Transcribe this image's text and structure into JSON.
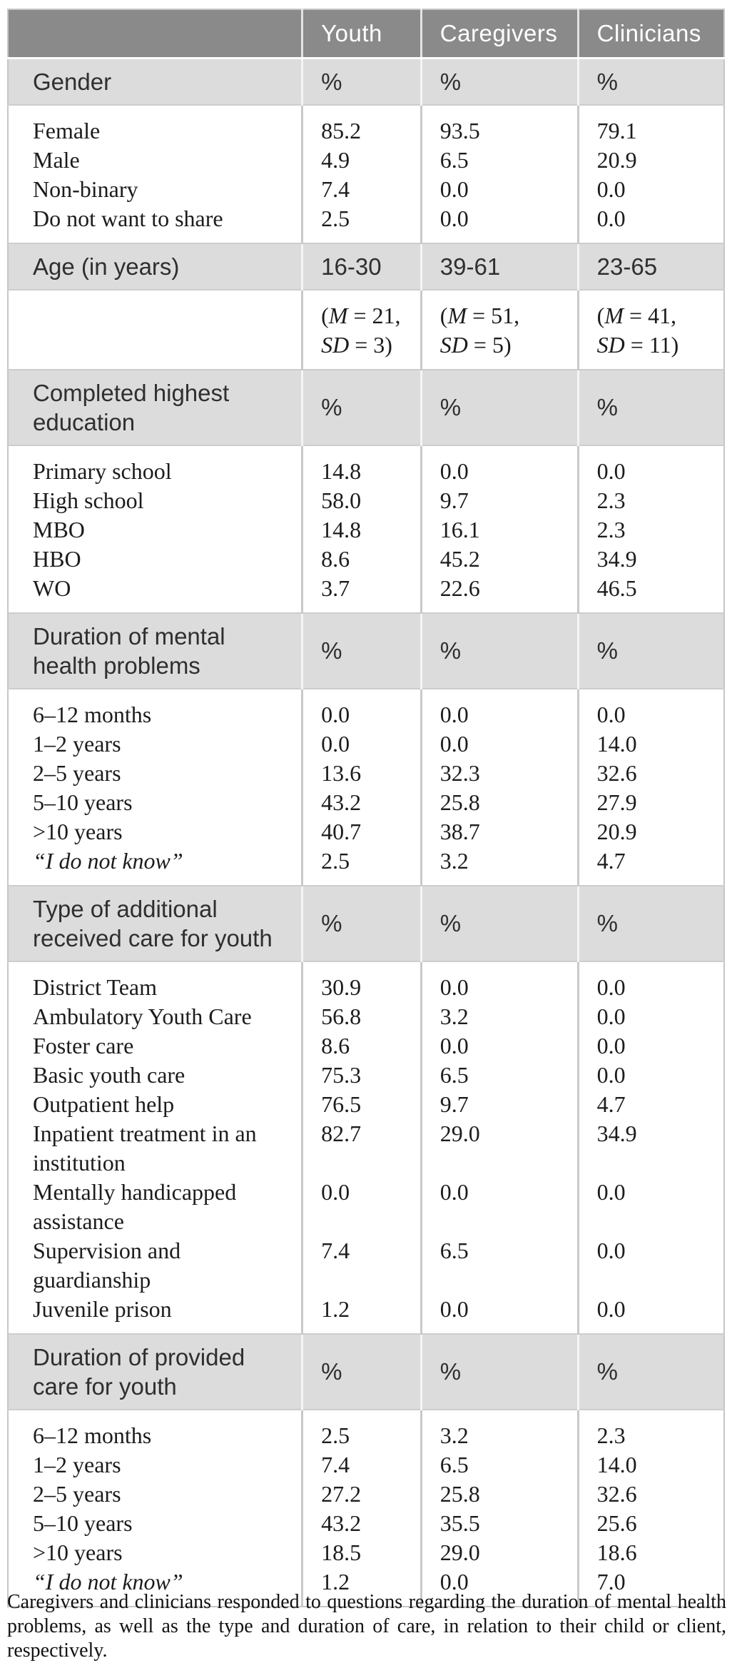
{
  "colors": {
    "header_bg": "#8a8a8a",
    "header_text": "#ffffff",
    "section_bg": "#dcdcdc",
    "body_text": "#1c1c1c",
    "grid_line": "#c9c9c9"
  },
  "table": {
    "columns": [
      "",
      "Youth",
      "Caregivers",
      "Clinicians"
    ],
    "sections": [
      {
        "kind": "gray",
        "label": "Gender",
        "values": [
          "%",
          "%",
          "%"
        ]
      },
      {
        "kind": "white",
        "rows": [
          {
            "label": "Female",
            "values": [
              "85.2",
              "93.5",
              "79.1"
            ]
          },
          {
            "label": "Male",
            "values": [
              "4.9",
              "6.5",
              "20.9"
            ]
          },
          {
            "label": "Non-binary",
            "values": [
              "7.4",
              "0.0",
              "0.0"
            ]
          },
          {
            "label": "Do not want to share",
            "values": [
              "2.5",
              "0.0",
              "0.0"
            ]
          }
        ]
      },
      {
        "kind": "gray",
        "label": "Age (in years)",
        "values": [
          "16-30",
          "39-61",
          "23-65"
        ]
      },
      {
        "kind": "white",
        "rows": [
          {
            "label": "",
            "values": [
              {
                "lines": [
                  "(M = 21,",
                  "SD = 3)"
                ]
              },
              {
                "lines": [
                  "(M = 51,",
                  "SD = 5)"
                ]
              },
              {
                "lines": [
                  "(M = 41,",
                  "SD = 11)"
                ]
              }
            ]
          }
        ]
      },
      {
        "kind": "gray",
        "label": "Completed highest education",
        "values": [
          "%",
          "%",
          "%"
        ]
      },
      {
        "kind": "white",
        "rows": [
          {
            "label": "Primary school",
            "values": [
              "14.8",
              "0.0",
              "0.0"
            ]
          },
          {
            "label": "High school",
            "values": [
              "58.0",
              "9.7",
              "2.3"
            ]
          },
          {
            "label": "MBO",
            "values": [
              "14.8",
              "16.1",
              "2.3"
            ]
          },
          {
            "label": "HBO",
            "values": [
              "8.6",
              "45.2",
              "34.9"
            ]
          },
          {
            "label": "WO",
            "values": [
              "3.7",
              "22.6",
              "46.5"
            ]
          }
        ]
      },
      {
        "kind": "gray",
        "label": "Duration of mental health problems",
        "values": [
          "%",
          "%",
          "%"
        ]
      },
      {
        "kind": "white",
        "rows": [
          {
            "label": "6–12 months",
            "values": [
              "0.0",
              "0.0",
              "0.0"
            ]
          },
          {
            "label": "1–2 years",
            "values": [
              "0.0",
              "0.0",
              "14.0"
            ]
          },
          {
            "label": "2–5 years",
            "values": [
              "13.6",
              "32.3",
              "32.6"
            ]
          },
          {
            "label": "5–10 years",
            "values": [
              "43.2",
              "25.8",
              "27.9"
            ]
          },
          {
            "label": ">10 years",
            "values": [
              "40.7",
              "38.7",
              "20.9"
            ]
          },
          {
            "label": "“I do not know”",
            "italic": true,
            "values": [
              "2.5",
              "3.2",
              "4.7"
            ]
          }
        ]
      },
      {
        "kind": "gray",
        "label": "Type of additional received care for youth",
        "values": [
          "%",
          "%",
          "%"
        ]
      },
      {
        "kind": "white",
        "rows": [
          {
            "label": "District Team",
            "values": [
              "30.9",
              "0.0",
              "0.0"
            ]
          },
          {
            "label": "Ambulatory Youth Care",
            "values": [
              "56.8",
              "3.2",
              "0.0"
            ]
          },
          {
            "label": "Foster care",
            "values": [
              "8.6",
              "0.0",
              "0.0"
            ]
          },
          {
            "label": "Basic youth care",
            "values": [
              "75.3",
              "6.5",
              "0.0"
            ]
          },
          {
            "label": "Outpatient help",
            "values": [
              "76.5",
              "9.7",
              "4.7"
            ]
          },
          {
            "label": "Inpatient treatment in an institution",
            "values": [
              "82.7",
              "29.0",
              "34.9"
            ]
          },
          {
            "label": "Mentally handicapped assistance",
            "values": [
              "0.0",
              "0.0",
              "0.0"
            ]
          },
          {
            "label": "Supervision and guardianship",
            "values": [
              "7.4",
              "6.5",
              "0.0"
            ]
          },
          {
            "label": "Juvenile prison",
            "values": [
              "1.2",
              "0.0",
              "0.0"
            ]
          }
        ]
      },
      {
        "kind": "gray",
        "label": "Duration of provided care for youth",
        "values": [
          "%",
          "%",
          "%"
        ]
      },
      {
        "kind": "white",
        "rows": [
          {
            "label": "6–12 months",
            "values": [
              "2.5",
              "3.2",
              "2.3"
            ]
          },
          {
            "label": "1–2 years",
            "values": [
              "7.4",
              "6.5",
              "14.0"
            ]
          },
          {
            "label": "2–5 years",
            "values": [
              "27.2",
              "25.8",
              "32.6"
            ]
          },
          {
            "label": "5–10 years",
            "values": [
              "43.2",
              "35.5",
              "25.6"
            ]
          },
          {
            "label": ">10 years",
            "values": [
              "18.5",
              "29.0",
              "18.6"
            ]
          },
          {
            "label": "“I do not know”",
            "italic": true,
            "values": [
              "1.2",
              "0.0",
              "7.0"
            ]
          }
        ]
      }
    ]
  },
  "footnote": "Caregivers and clinicians responded to questions regarding the duration of mental health problems, as well as the type and duration of care, in relation to their child or client, respectively."
}
